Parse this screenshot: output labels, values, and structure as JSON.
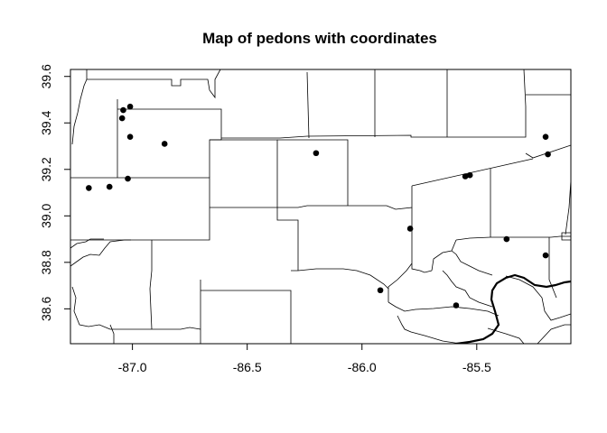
{
  "chart_data": {
    "type": "scatter",
    "title": "Map of pedons with coordinates",
    "xlabel": "",
    "ylabel": "",
    "xlim": [
      -87.27,
      -85.09
    ],
    "ylim": [
      38.45,
      39.63
    ],
    "x_ticks": [
      -87.0,
      -86.5,
      -86.0,
      -85.5
    ],
    "x_tick_labels": [
      "-87.0",
      "-86.5",
      "-86.0",
      "-85.5"
    ],
    "y_ticks": [
      38.6,
      38.8,
      39.0,
      39.2,
      39.4,
      39.6
    ],
    "y_tick_labels": [
      "38.6",
      "38.8",
      "39.0",
      "39.2",
      "39.4",
      "39.6"
    ],
    "grid": false,
    "marker_color": "#000000",
    "points": [
      {
        "x": -87.01,
        "y": 39.47
      },
      {
        "x": -87.04,
        "y": 39.455
      },
      {
        "x": -87.045,
        "y": 39.42
      },
      {
        "x": -87.01,
        "y": 39.34
      },
      {
        "x": -86.86,
        "y": 39.31
      },
      {
        "x": -87.02,
        "y": 39.16
      },
      {
        "x": -87.1,
        "y": 39.125
      },
      {
        "x": -87.19,
        "y": 39.12
      },
      {
        "x": -86.2,
        "y": 39.27
      },
      {
        "x": -85.55,
        "y": 39.17
      },
      {
        "x": -85.53,
        "y": 39.175
      },
      {
        "x": -85.2,
        "y": 39.34
      },
      {
        "x": -85.19,
        "y": 39.265
      },
      {
        "x": -85.79,
        "y": 38.945
      },
      {
        "x": -85.37,
        "y": 38.9
      },
      {
        "x": -85.2,
        "y": 38.83
      },
      {
        "x": -85.92,
        "y": 38.68
      },
      {
        "x": -85.59,
        "y": 38.615
      }
    ]
  }
}
